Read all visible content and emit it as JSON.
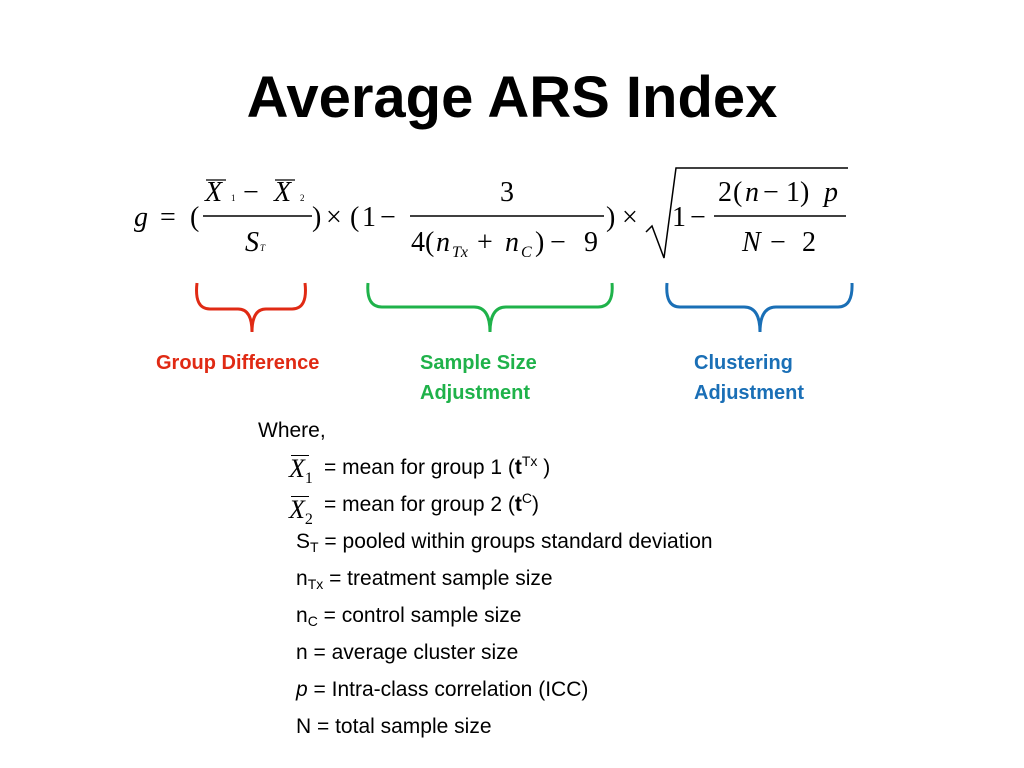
{
  "title": "Average ARS Index",
  "formula": {
    "g": "g",
    "eq": "=",
    "open": "(",
    "close": ")",
    "times": "×",
    "X": "X",
    "one": "1",
    "two": "2",
    "minus": "−",
    "S": "S",
    "T": "T",
    "three": "3",
    "four": "4",
    "n": "n",
    "Tx": "Tx",
    "plus": "+",
    "C": "C",
    "nine": "9",
    "p": "p",
    "N": "N"
  },
  "brackets": {
    "red": "#e02a14",
    "green": "#1fb24a",
    "blue": "#1a6fb6"
  },
  "labels": {
    "group_difference": "Group Difference",
    "sample_size_line1": "Sample Size",
    "sample_size_line2": "Adjustment",
    "clustering_line1": "Clustering",
    "clustering_line2": "Adjustment"
  },
  "definitions": {
    "where": "Where,",
    "x1": {
      "symbol": "X",
      "sub": "1",
      "text_pre": " = mean for group 1 (",
      "bold": "t",
      "sup": "Tx",
      "text_post": " )"
    },
    "x2": {
      "symbol": "X",
      "sub": "2",
      "text_pre": " = mean for group 2 (",
      "bold": "t",
      "sup": "C",
      "text_post": ")"
    },
    "st": {
      "base": "S",
      "sub": "T",
      "text": " = pooled within groups standard deviation"
    },
    "ntx": {
      "base": "n",
      "sub": "Tx",
      "text": " = treatment sample size"
    },
    "nc": {
      "base": "n",
      "sub": "C",
      "text": " = control sample size"
    },
    "n": {
      "text": "n = average cluster size"
    },
    "p": {
      "italic": "p",
      "text": " = Intra-class correlation (ICC)"
    },
    "N": {
      "text": "N = total sample size"
    }
  }
}
